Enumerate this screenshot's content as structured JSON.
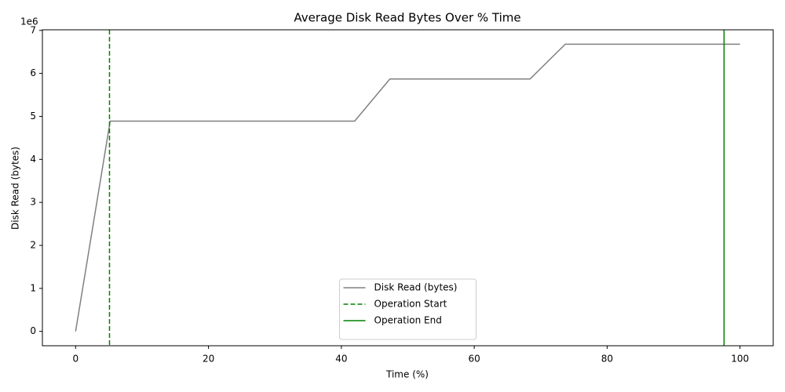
{
  "chart_data": {
    "type": "line",
    "title": "Average Disk Read Bytes Over % Time",
    "xlabel": "Time (%)",
    "ylabel": "Disk Read (bytes)",
    "y_offset_label": "1e6",
    "x": [
      0,
      5.2,
      42,
      47.3,
      68.4,
      73.7,
      100
    ],
    "series": [
      {
        "name": "Disk Read (bytes)",
        "color": "#808080",
        "values": [
          0,
          4890000,
          4890000,
          5870000,
          5870000,
          6680000,
          6680000
        ]
      }
    ],
    "vlines": [
      {
        "name": "Operation Start",
        "x": 5.1,
        "color": "#008000",
        "style": "dashed"
      },
      {
        "name": "Operation End",
        "x": 97.6,
        "color": "#008000",
        "style": "solid"
      }
    ],
    "xlim": [
      -5,
      105
    ],
    "ylim": [
      -334000,
      7014000
    ],
    "xticks": [
      0,
      20,
      40,
      60,
      80,
      100
    ],
    "yticks": [
      {
        "value": 0,
        "label": "0"
      },
      {
        "value": 1000000,
        "label": "1"
      },
      {
        "value": 2000000,
        "label": "2"
      },
      {
        "value": 3000000,
        "label": "3"
      },
      {
        "value": 4000000,
        "label": "4"
      },
      {
        "value": 5000000,
        "label": "5"
      },
      {
        "value": 6000000,
        "label": "6"
      },
      {
        "value": 7000000,
        "label": "7"
      }
    ],
    "grid": false,
    "legend": "lower center"
  }
}
